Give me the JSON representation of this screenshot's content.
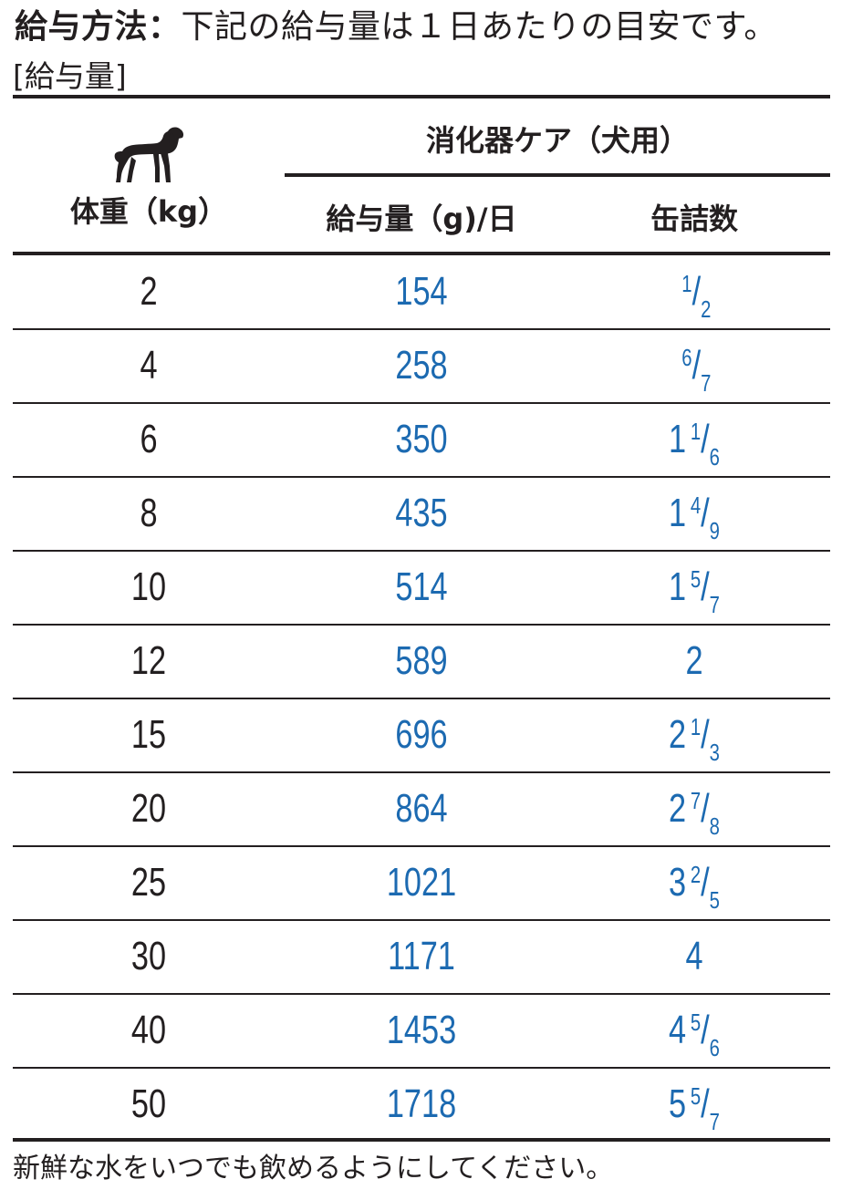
{
  "heading": {
    "label": "給与方法：",
    "text": "下記の給与量は１日あたりの目安です。",
    "subtitle": "[給与量]"
  },
  "table": {
    "header": {
      "weight": "体重（kg）",
      "product": "消化器ケア（犬用）",
      "grams": "給与量（g)/日",
      "cans": "缶詰数",
      "dog_icon": "dog-silhouette-icon"
    },
    "rows": [
      {
        "weight": "2",
        "grams": "154",
        "cans": {
          "whole": "",
          "num": "1",
          "den": "2"
        }
      },
      {
        "weight": "4",
        "grams": "258",
        "cans": {
          "whole": "",
          "num": "6",
          "den": "7"
        }
      },
      {
        "weight": "6",
        "grams": "350",
        "cans": {
          "whole": "1",
          "num": "1",
          "den": "6"
        }
      },
      {
        "weight": "8",
        "grams": "435",
        "cans": {
          "whole": "1",
          "num": "4",
          "den": "9"
        }
      },
      {
        "weight": "10",
        "grams": "514",
        "cans": {
          "whole": "1",
          "num": "5",
          "den": "7"
        }
      },
      {
        "weight": "12",
        "grams": "589",
        "cans": {
          "whole": "2",
          "num": "",
          "den": ""
        }
      },
      {
        "weight": "15",
        "grams": "696",
        "cans": {
          "whole": "2",
          "num": "1",
          "den": "3"
        }
      },
      {
        "weight": "20",
        "grams": "864",
        "cans": {
          "whole": "2",
          "num": "7",
          "den": "8"
        }
      },
      {
        "weight": "25",
        "grams": "1021",
        "cans": {
          "whole": "3",
          "num": "2",
          "den": "5"
        }
      },
      {
        "weight": "30",
        "grams": "1171",
        "cans": {
          "whole": "4",
          "num": "",
          "den": ""
        }
      },
      {
        "weight": "40",
        "grams": "1453",
        "cans": {
          "whole": "4",
          "num": "5",
          "den": "6"
        }
      },
      {
        "weight": "50",
        "grams": "1718",
        "cans": {
          "whole": "5",
          "num": "5",
          "den": "7"
        }
      }
    ]
  },
  "footer": "新鮮な水をいつでも飲めるようにしてください。",
  "colors": {
    "text": "#231f20",
    "accent": "#1c6ab1"
  }
}
